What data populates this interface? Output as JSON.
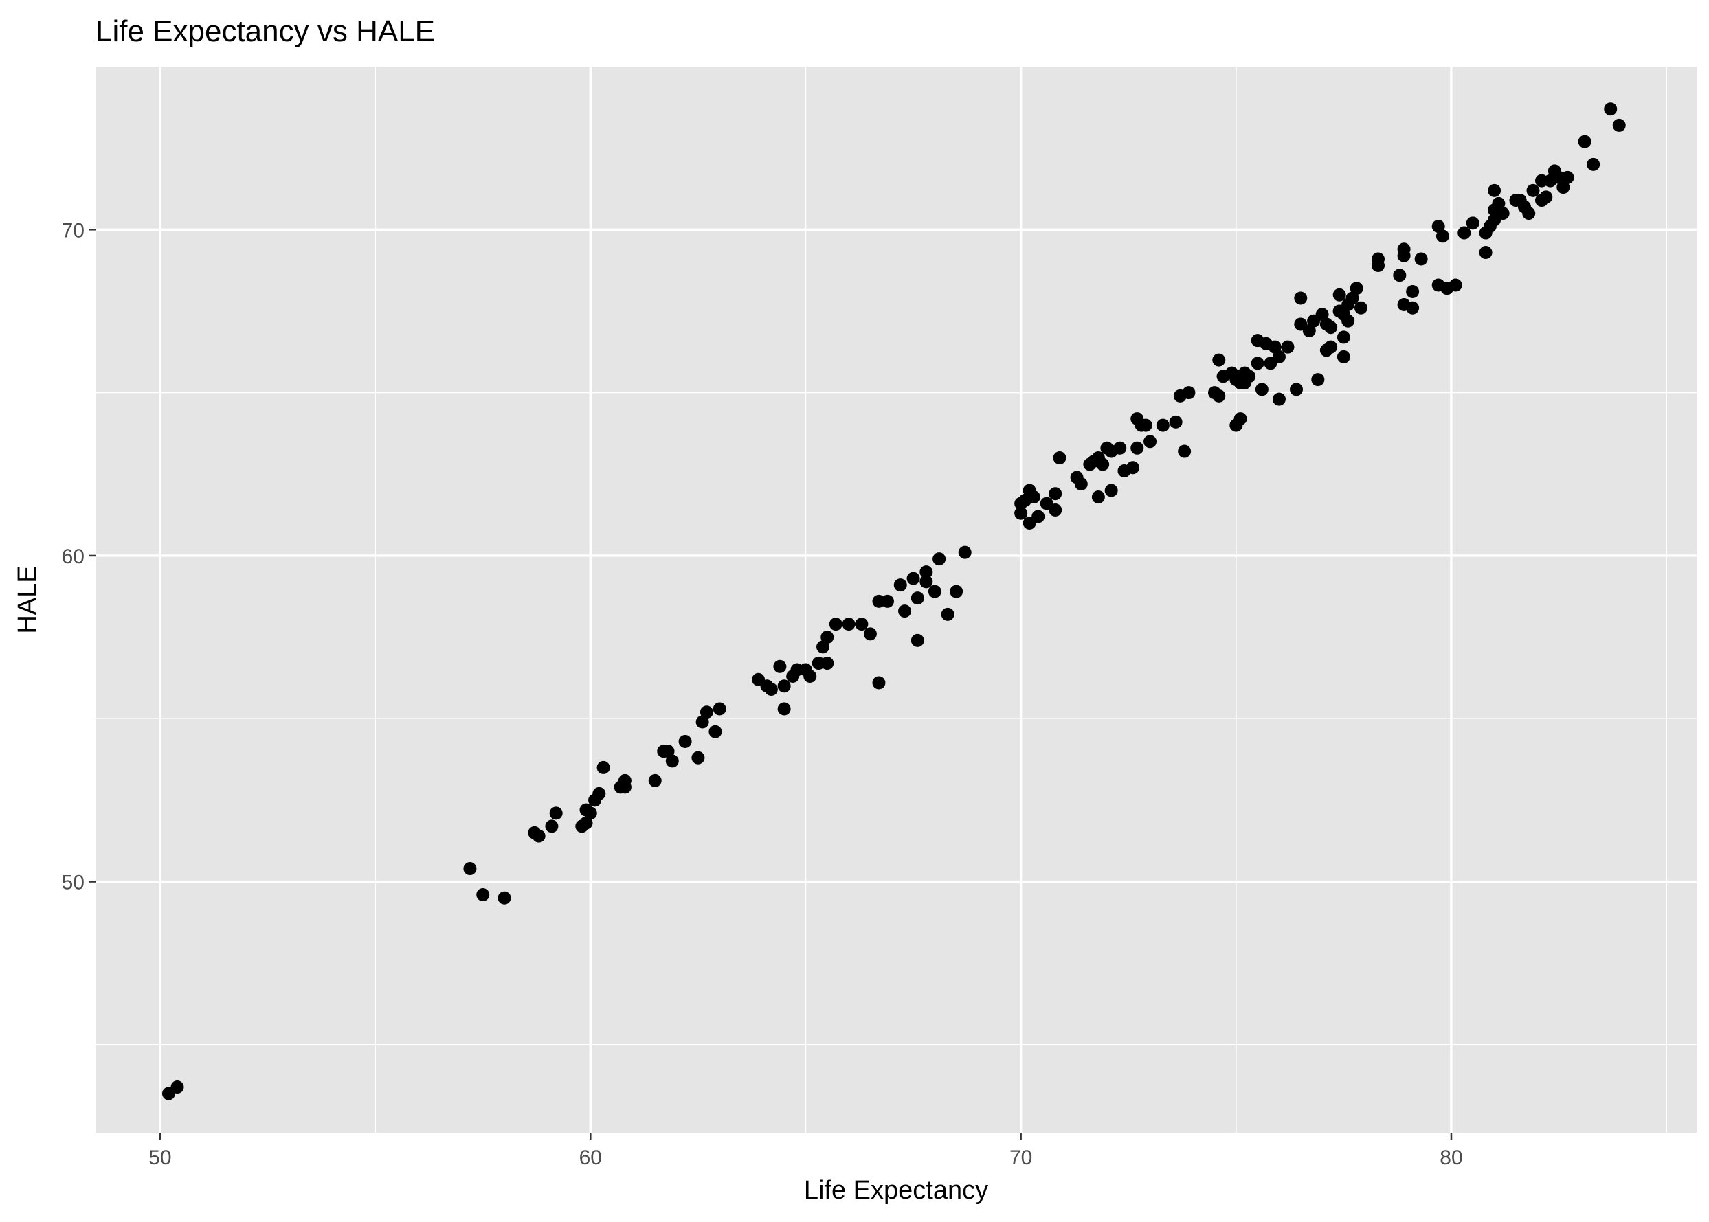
{
  "chart_data": {
    "type": "scatter",
    "title": "Life Expectancy vs HALE",
    "xlabel": "Life Expectancy",
    "ylabel": "HALE",
    "xlim": [
      48.5,
      85.7
    ],
    "ylim": [
      42.3,
      75.0
    ],
    "x_ticks": [
      50,
      60,
      70,
      80
    ],
    "y_ticks": [
      50,
      60,
      70
    ],
    "x_minor_ticks": [
      55,
      65,
      75,
      85
    ],
    "y_minor_ticks": [
      45,
      55,
      65
    ],
    "grid": true,
    "legend": "none",
    "colors": {
      "panel": "#e5e5e5",
      "grid": "#ffffff",
      "point": "#000000",
      "tick": "#333333"
    },
    "points": [
      [
        50.2,
        43.5
      ],
      [
        50.4,
        43.7
      ],
      [
        57.2,
        50.4
      ],
      [
        57.5,
        49.6
      ],
      [
        58.0,
        49.5
      ],
      [
        58.7,
        51.5
      ],
      [
        58.8,
        51.4
      ],
      [
        59.1,
        51.7
      ],
      [
        59.2,
        52.1
      ],
      [
        59.8,
        51.7
      ],
      [
        59.9,
        51.8
      ],
      [
        59.9,
        52.2
      ],
      [
        60.0,
        52.1
      ],
      [
        60.1,
        52.5
      ],
      [
        60.2,
        52.7
      ],
      [
        60.3,
        53.5
      ],
      [
        60.7,
        52.9
      ],
      [
        60.8,
        53.1
      ],
      [
        60.8,
        52.9
      ],
      [
        61.5,
        53.1
      ],
      [
        61.7,
        54.0
      ],
      [
        61.8,
        54.0
      ],
      [
        61.9,
        53.7
      ],
      [
        62.2,
        54.3
      ],
      [
        62.5,
        53.8
      ],
      [
        62.6,
        54.9
      ],
      [
        62.7,
        55.2
      ],
      [
        62.9,
        54.6
      ],
      [
        63.0,
        55.3
      ],
      [
        63.9,
        56.2
      ],
      [
        64.1,
        56.0
      ],
      [
        64.2,
        55.9
      ],
      [
        64.4,
        56.6
      ],
      [
        64.5,
        55.3
      ],
      [
        64.5,
        56.0
      ],
      [
        64.7,
        56.3
      ],
      [
        64.8,
        56.5
      ],
      [
        65.0,
        56.5
      ],
      [
        65.1,
        56.3
      ],
      [
        65.3,
        56.7
      ],
      [
        65.4,
        57.2
      ],
      [
        65.5,
        56.7
      ],
      [
        65.5,
        57.5
      ],
      [
        65.7,
        57.9
      ],
      [
        66.0,
        57.9
      ],
      [
        66.3,
        57.9
      ],
      [
        66.5,
        57.6
      ],
      [
        66.7,
        58.6
      ],
      [
        66.7,
        56.1
      ],
      [
        66.9,
        58.6
      ],
      [
        67.2,
        59.1
      ],
      [
        67.3,
        58.3
      ],
      [
        67.5,
        59.3
      ],
      [
        67.6,
        57.4
      ],
      [
        67.6,
        58.7
      ],
      [
        67.8,
        59.5
      ],
      [
        67.8,
        59.2
      ],
      [
        68.0,
        58.9
      ],
      [
        68.1,
        59.9
      ],
      [
        68.3,
        58.2
      ],
      [
        68.5,
        58.9
      ],
      [
        68.7,
        60.1
      ],
      [
        70.0,
        61.3
      ],
      [
        70.0,
        61.6
      ],
      [
        70.1,
        61.7
      ],
      [
        70.2,
        61.0
      ],
      [
        70.2,
        62.0
      ],
      [
        70.3,
        61.8
      ],
      [
        70.4,
        61.2
      ],
      [
        70.6,
        61.6
      ],
      [
        70.8,
        61.4
      ],
      [
        70.8,
        61.9
      ],
      [
        70.9,
        63.0
      ],
      [
        71.3,
        62.4
      ],
      [
        71.4,
        62.2
      ],
      [
        71.6,
        62.8
      ],
      [
        71.7,
        62.9
      ],
      [
        71.8,
        61.8
      ],
      [
        71.8,
        63.0
      ],
      [
        71.9,
        62.8
      ],
      [
        72.0,
        63.3
      ],
      [
        72.1,
        62.0
      ],
      [
        72.1,
        63.2
      ],
      [
        72.3,
        63.3
      ],
      [
        72.4,
        62.6
      ],
      [
        72.6,
        62.7
      ],
      [
        72.7,
        63.3
      ],
      [
        72.7,
        64.2
      ],
      [
        72.8,
        64.0
      ],
      [
        72.9,
        64.0
      ],
      [
        73.0,
        63.5
      ],
      [
        73.3,
        64.0
      ],
      [
        73.6,
        64.1
      ],
      [
        73.7,
        64.9
      ],
      [
        73.8,
        63.2
      ],
      [
        73.9,
        65.0
      ],
      [
        74.5,
        65.0
      ],
      [
        74.6,
        66.0
      ],
      [
        74.6,
        64.9
      ],
      [
        74.7,
        65.5
      ],
      [
        74.9,
        65.6
      ],
      [
        75.0,
        65.4
      ],
      [
        75.0,
        64.0
      ],
      [
        75.1,
        64.2
      ],
      [
        75.1,
        65.5
      ],
      [
        75.1,
        65.3
      ],
      [
        75.2,
        65.6
      ],
      [
        75.2,
        65.3
      ],
      [
        75.3,
        65.5
      ],
      [
        75.5,
        66.6
      ],
      [
        75.5,
        65.9
      ],
      [
        75.6,
        65.1
      ],
      [
        75.7,
        66.5
      ],
      [
        75.8,
        65.9
      ],
      [
        75.9,
        66.4
      ],
      [
        76.0,
        66.1
      ],
      [
        76.0,
        64.8
      ],
      [
        76.2,
        66.4
      ],
      [
        76.4,
        65.1
      ],
      [
        76.5,
        67.9
      ],
      [
        76.5,
        67.1
      ],
      [
        76.7,
        66.9
      ],
      [
        76.8,
        67.2
      ],
      [
        76.9,
        65.4
      ],
      [
        77.0,
        67.4
      ],
      [
        77.1,
        67.1
      ],
      [
        77.1,
        66.3
      ],
      [
        77.2,
        66.4
      ],
      [
        77.2,
        67.0
      ],
      [
        77.4,
        68.0
      ],
      [
        77.4,
        67.5
      ],
      [
        77.5,
        67.4
      ],
      [
        77.5,
        66.1
      ],
      [
        77.5,
        66.7
      ],
      [
        77.6,
        67.7
      ],
      [
        77.6,
        67.2
      ],
      [
        77.7,
        67.9
      ],
      [
        77.8,
        68.2
      ],
      [
        77.9,
        67.6
      ],
      [
        78.3,
        68.9
      ],
      [
        78.3,
        69.1
      ],
      [
        78.8,
        68.6
      ],
      [
        78.9,
        67.7
      ],
      [
        78.9,
        69.2
      ],
      [
        78.9,
        69.4
      ],
      [
        79.1,
        67.6
      ],
      [
        79.1,
        68.1
      ],
      [
        79.3,
        69.1
      ],
      [
        79.7,
        70.1
      ],
      [
        79.7,
        68.3
      ],
      [
        79.8,
        69.8
      ],
      [
        79.9,
        68.2
      ],
      [
        80.1,
        68.3
      ],
      [
        80.3,
        69.9
      ],
      [
        80.5,
        70.2
      ],
      [
        80.8,
        69.9
      ],
      [
        80.8,
        69.3
      ],
      [
        80.9,
        70.1
      ],
      [
        81.0,
        70.3
      ],
      [
        81.0,
        70.6
      ],
      [
        81.0,
        71.2
      ],
      [
        81.1,
        70.8
      ],
      [
        81.2,
        70.5
      ],
      [
        81.5,
        70.9
      ],
      [
        81.6,
        70.9
      ],
      [
        81.7,
        70.7
      ],
      [
        81.8,
        70.5
      ],
      [
        81.9,
        71.2
      ],
      [
        82.1,
        70.9
      ],
      [
        82.1,
        71.5
      ],
      [
        82.2,
        71.0
      ],
      [
        82.3,
        71.5
      ],
      [
        82.4,
        71.8
      ],
      [
        82.5,
        71.6
      ],
      [
        82.6,
        71.3
      ],
      [
        82.7,
        71.6
      ],
      [
        83.1,
        72.7
      ],
      [
        83.3,
        72.0
      ],
      [
        83.7,
        73.7
      ],
      [
        83.9,
        73.2
      ]
    ]
  }
}
